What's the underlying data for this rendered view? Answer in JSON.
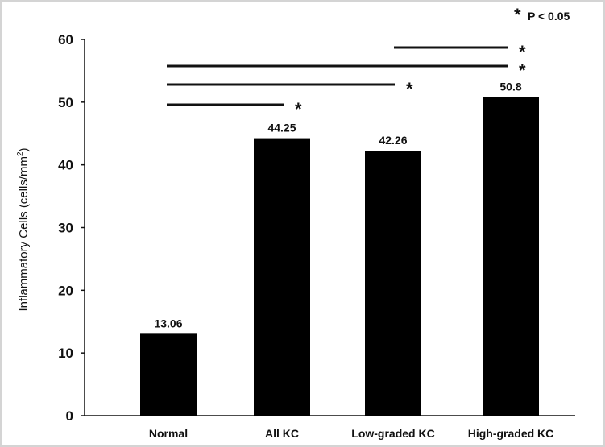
{
  "chart_data": {
    "type": "bar",
    "categories": [
      "Normal",
      "All KC",
      "Low-graded KC",
      "High-graded KC"
    ],
    "values": [
      13.06,
      44.25,
      42.26,
      50.8
    ],
    "value_labels": [
      "13.06",
      "44.25",
      "42.26",
      "50.8"
    ],
    "ylabel": "Inflammatory Cells (cells/mm²)",
    "ylim": [
      0,
      60
    ],
    "yticks": [
      0,
      10,
      20,
      30,
      40,
      50,
      60
    ],
    "bar_color": "#000000",
    "legend": {
      "marker": "*",
      "text": "P < 0.05",
      "placement": "top-right"
    },
    "significance": [
      {
        "from": "Normal",
        "to": "All KC",
        "marker": "*"
      },
      {
        "from": "Normal",
        "to": "Low-graded KC",
        "marker": "*"
      },
      {
        "from": "Normal",
        "to": "High-graded KC",
        "marker": "*"
      },
      {
        "from": "Low-graded KC",
        "to": "High-graded KC",
        "marker": "*"
      }
    ]
  }
}
